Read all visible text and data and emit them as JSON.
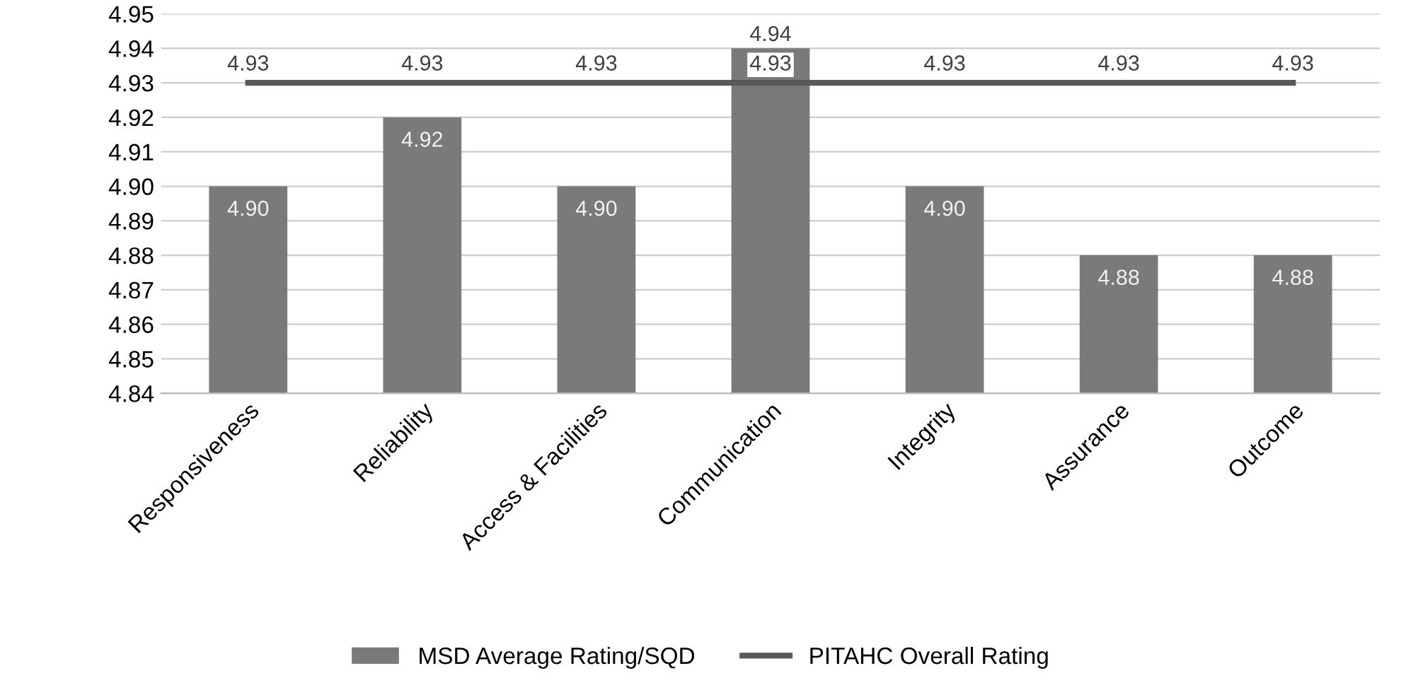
{
  "chart_data": {
    "type": "bar",
    "categories": [
      "Responsiveness",
      "Reliability",
      "Access & Facilities",
      "Communication",
      "Integrity",
      "Assurance",
      "Outcome"
    ],
    "series": [
      {
        "name": "MSD Average Rating/SQD",
        "color": "#7a7a7a",
        "values": [
          4.9,
          4.92,
          4.9,
          4.94,
          4.9,
          4.88,
          4.88
        ],
        "value_labels": [
          "4.90",
          "4.92",
          "4.90",
          "4.94",
          "4.90",
          "4.88",
          "4.88"
        ]
      },
      {
        "name": "PITAHC Overall Rating",
        "type": "line",
        "color": "#595959",
        "values": [
          4.93,
          4.93,
          4.93,
          4.93,
          4.93,
          4.93,
          4.93
        ],
        "value_labels": [
          "4.93",
          "4.93",
          "4.93",
          "4.93",
          "4.93",
          "4.93",
          "4.93"
        ]
      }
    ],
    "ylim": [
      4.84,
      4.95
    ],
    "yticks": [
      {
        "value": 4.84,
        "label": "4.84"
      },
      {
        "value": 4.85,
        "label": "4.85"
      },
      {
        "value": 4.86,
        "label": "4.86"
      },
      {
        "value": 4.87,
        "label": "4.87"
      },
      {
        "value": 4.88,
        "label": "4.88"
      },
      {
        "value": 4.89,
        "label": "4.89"
      },
      {
        "value": 4.9,
        "label": "4.90"
      },
      {
        "value": 4.91,
        "label": "4.91"
      },
      {
        "value": 4.92,
        "label": "4.92"
      },
      {
        "value": 4.93,
        "label": "4.93"
      },
      {
        "value": 4.94,
        "label": "4.94"
      },
      {
        "value": 4.95,
        "label": "4.95"
      }
    ],
    "grid": "y",
    "legend": "bottom"
  }
}
